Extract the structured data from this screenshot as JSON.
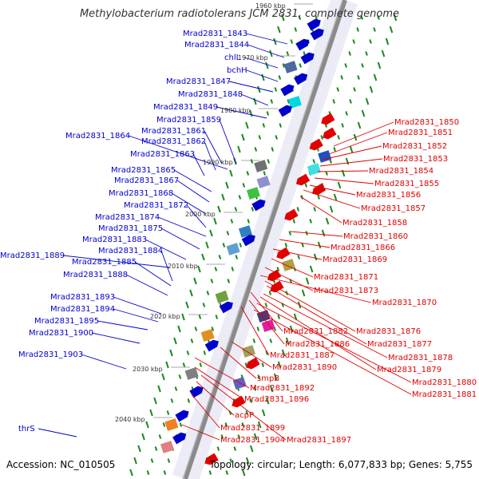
{
  "title": "Methylobacterium radiotolerans JCM 2831, complete genome",
  "accession": "Accession: NC_010505",
  "topology": "Topology: circular; Length: 6,077,833 bp; Genes: 5,755",
  "colors": {
    "forward": "#0000cc",
    "reverse": "#e00000",
    "backbone": "#8a8a8a",
    "tick": "#1a8a1a",
    "halo": "#dcdcf0"
  },
  "kbp_marks": [
    "1960 kbp",
    "1970 kbp",
    "1980 kbp",
    "1990 kbp",
    "2000 kbp",
    "2010 kbp",
    "2020 kbp",
    "2030 kbp",
    "2040 kbp"
  ],
  "left_labels": [
    "Mrad2831_1843",
    "Mrad2831_1844",
    "chlL",
    "bchH",
    "Mrad2831_1847",
    "Mrad2831_1848",
    "Mrad2831_1849",
    "Mrad2831_1859",
    "Mrad2831_1864",
    "Mrad2831_1861",
    "Mrad2831_1862",
    "Mrad2831_1863",
    "Mrad2831_1865",
    "Mrad2831_1867",
    "Mrad2831_1868",
    "Mrad2831_1872",
    "Mrad2831_1874",
    "Mrad2831_1875",
    "Mrad2831_1883",
    "Mrad2831_1889",
    "Mrad2831_1884",
    "Mrad2831_1885",
    "Mrad2831_1888",
    "Mrad2831_1893",
    "Mrad2831_1894",
    "Mrad2831_1895",
    "Mrad2831_1900",
    "Mrad2831_1903",
    "thrS"
  ],
  "right_labels": [
    "Mrad2831_1850",
    "Mrad2831_1851",
    "Mrad2831_1852",
    "Mrad2831_1853",
    "Mrad2831_1854",
    "Mrad2831_1855",
    "Mrad2831_1856",
    "Mrad2831_1857",
    "Mrad2831_1858",
    "Mrad2831_1860",
    "Mrad2831_1866",
    "Mrad2831_1869",
    "Mrad2831_1871",
    "Mrad2831_1873",
    "Mrad2831_1870",
    "Mrad2831_1882",
    "Mrad2831_1876",
    "Mrad2831_1886",
    "Mrad2831_1877",
    "Mrad2831_1887",
    "Mrad2831_1878",
    "Mrad2831_1890",
    "Mrad2831_1879",
    "smpB",
    "Mrad2831_1880",
    "Mrad2831_1892",
    "Mrad2831_1881",
    "Mrad2831_1896",
    "acpP",
    "Mrad2831_1899",
    "Mrad2831_1904",
    "Mrad2831_1897"
  ]
}
